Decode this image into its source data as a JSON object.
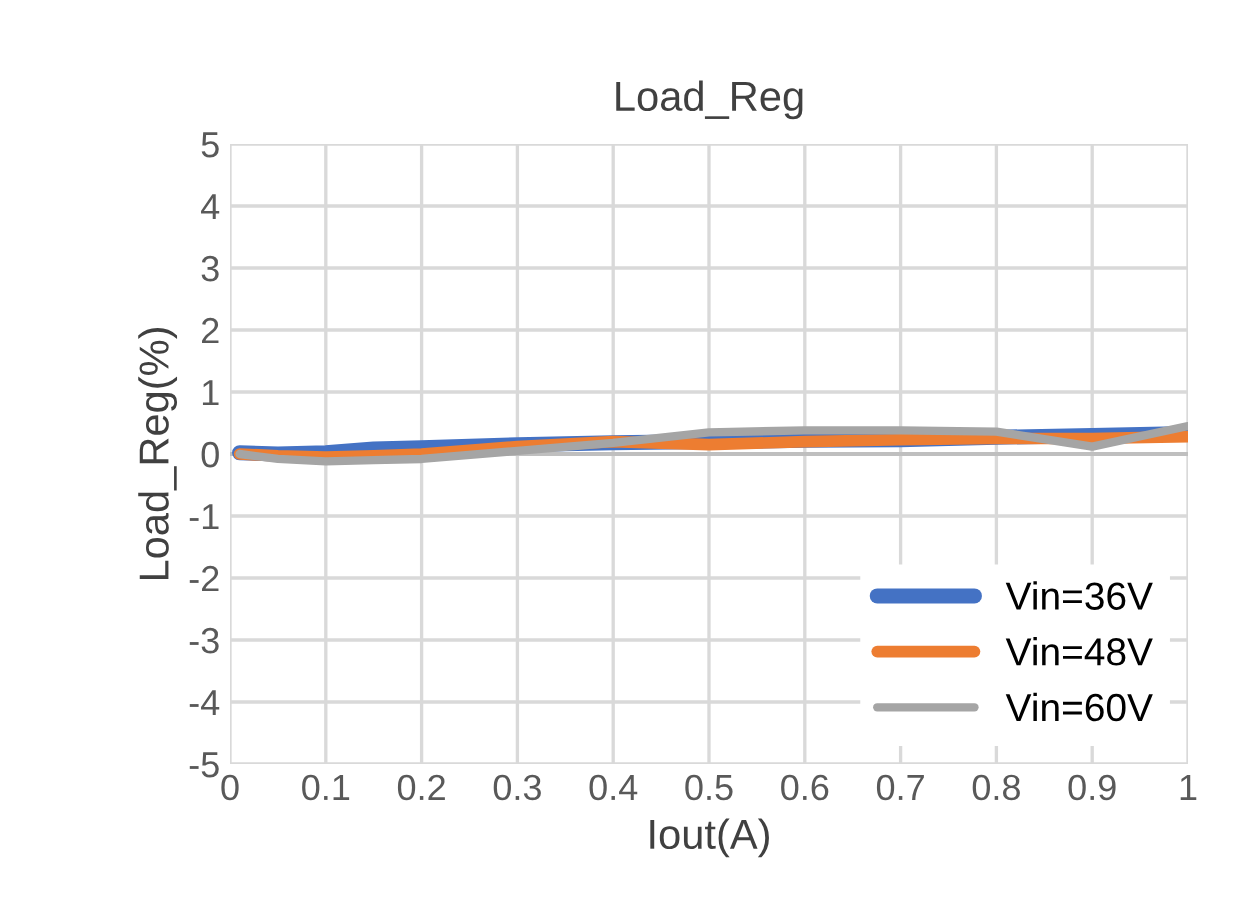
{
  "chart_data": {
    "type": "line",
    "title": "Load_Reg",
    "xlabel": "Iout(A)",
    "ylabel": "Load_Reg(%)",
    "x": [
      0.01,
      0.05,
      0.1,
      0.15,
      0.2,
      0.3,
      0.4,
      0.5,
      0.6,
      0.7,
      0.8,
      0.9,
      1.0
    ],
    "series": [
      {
        "name": "Vin=36V",
        "color": "#4472c4",
        "values": [
          0.02,
          0.0,
          0.02,
          0.08,
          0.1,
          0.15,
          0.18,
          0.2,
          0.22,
          0.23,
          0.27,
          0.3,
          0.33
        ]
      },
      {
        "name": "Vin=48V",
        "color": "#ed7d31",
        "values": [
          0.0,
          -0.03,
          -0.05,
          -0.03,
          0.0,
          0.12,
          0.2,
          0.15,
          0.2,
          0.23,
          0.25,
          0.25,
          0.28
        ]
      },
      {
        "name": "Vin=60V",
        "color": "#a5a5a5",
        "values": [
          0.0,
          -0.08,
          -0.12,
          -0.1,
          -0.08,
          0.05,
          0.18,
          0.35,
          0.38,
          0.38,
          0.36,
          0.12,
          0.45
        ]
      }
    ],
    "xlim": [
      0,
      1
    ],
    "xticks": [
      0,
      0.1,
      0.2,
      0.3,
      0.4,
      0.5,
      0.6,
      0.7,
      0.8,
      0.9,
      1
    ],
    "ylim": [
      -5,
      5
    ],
    "yticks": [
      -5,
      -4,
      -3,
      -2,
      -1,
      0,
      1,
      2,
      3,
      4,
      5
    ],
    "grid": true,
    "legend": "bottom right",
    "marker": "none",
    "line_style": "solid"
  }
}
